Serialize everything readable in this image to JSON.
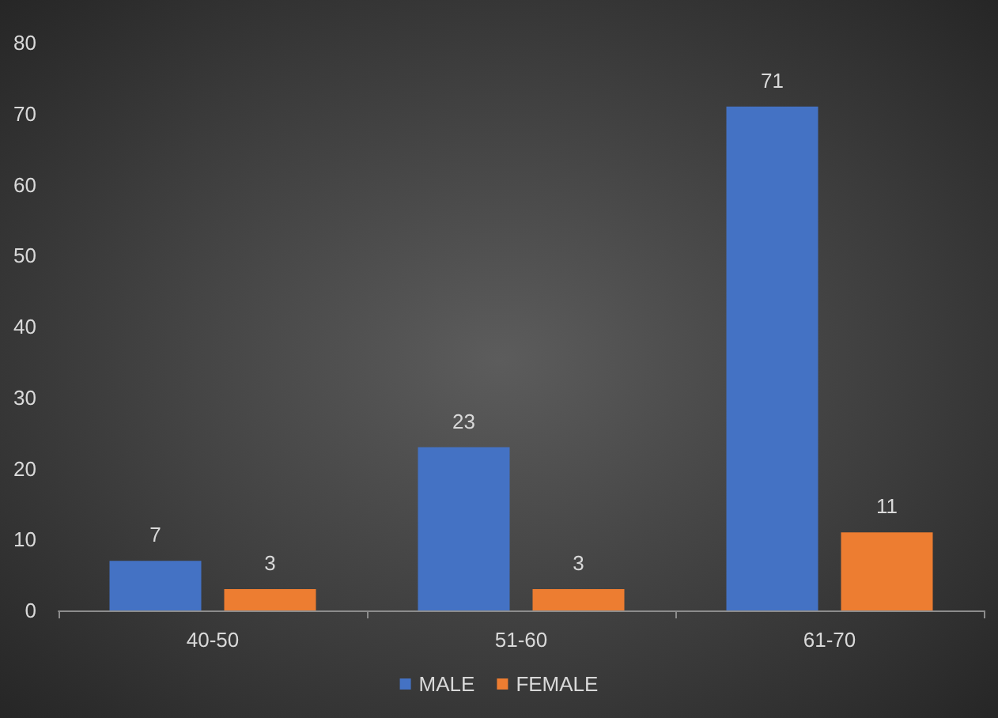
{
  "chart_data": {
    "type": "bar",
    "categories": [
      "40-50",
      "51-60",
      "61-70"
    ],
    "series": [
      {
        "name": "MALE",
        "color": "#4472c4",
        "values": [
          7,
          23,
          71
        ]
      },
      {
        "name": "FEMALE",
        "color": "#ed7d31",
        "values": [
          3,
          3,
          11
        ]
      }
    ],
    "ylim": [
      0,
      80
    ],
    "yticks": [
      0,
      10,
      20,
      30,
      40,
      50,
      60,
      70,
      80
    ],
    "grid": false,
    "legend": "bottom",
    "data_labels": true
  }
}
